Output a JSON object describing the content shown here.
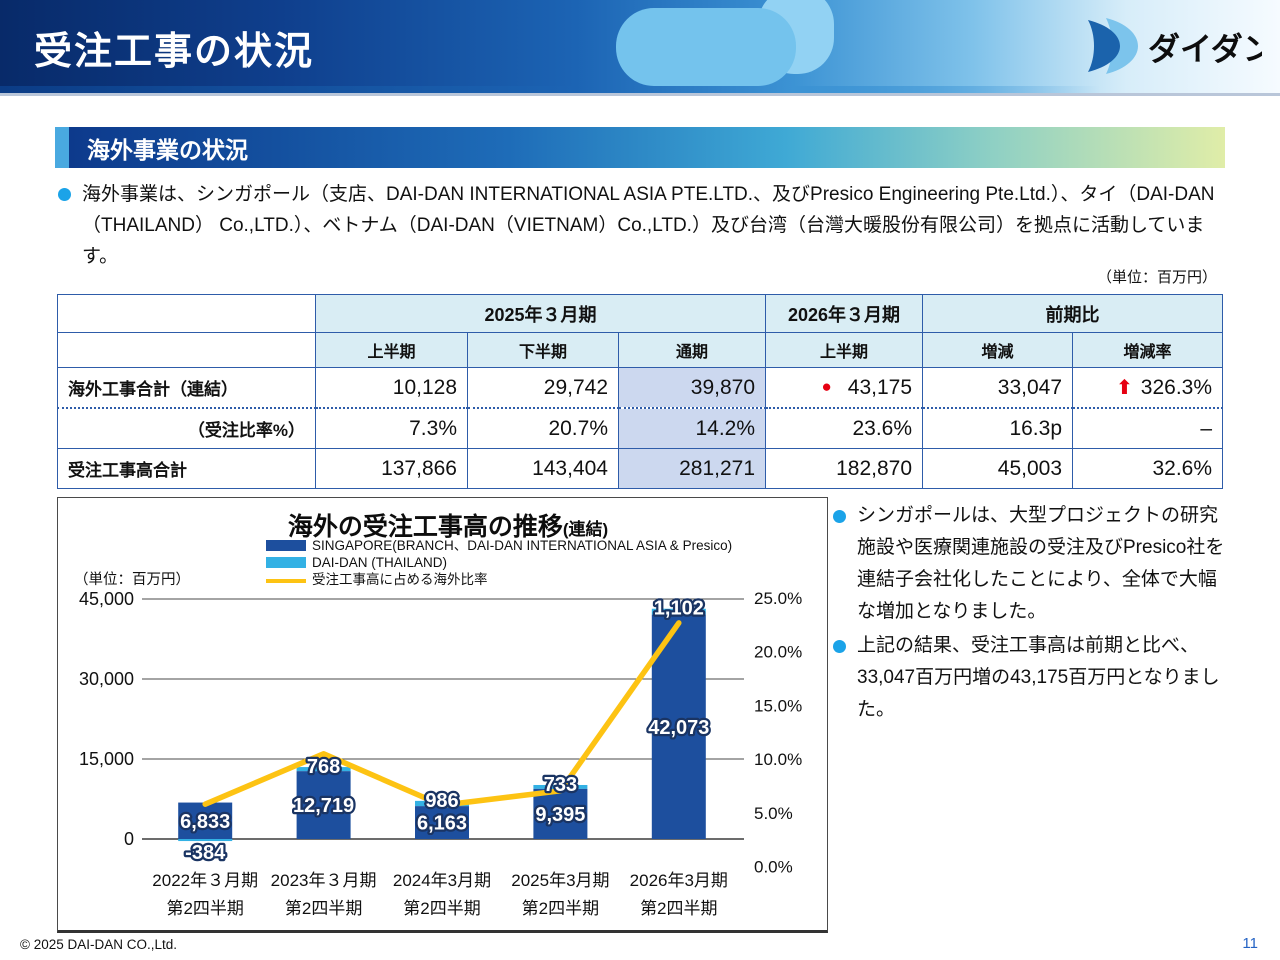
{
  "slide": {
    "title": "受注工事の状況",
    "logo_text": "ダイダン",
    "copyright": "© 2025 DAI-DAN CO.,Ltd.",
    "page_number": "11"
  },
  "section": {
    "heading": "海外事業の状況",
    "intro": "海外事業は、シンガポール（支店、DAI-DAN INTERNATIONAL ASIA PTE.LTD.、及びPresico Engineering Pte.Ltd.）、タイ（DAI-DAN（THAILAND） Co.,LTD.）、ベトナム（DAI-DAN（VIETNAM）Co.,LTD.）及び台湾（台灣大暖股份有限公司）を拠点に活動しています。",
    "unit_note": "（単位：百万円）"
  },
  "table": {
    "groups": [
      {
        "label": "2025年３月期"
      },
      {
        "label": "2026年３月期"
      },
      {
        "label": "前期比"
      }
    ],
    "subheads": [
      "上半期",
      "下半期",
      "通期",
      "上半期",
      "増減",
      "増減率"
    ],
    "rows": [
      {
        "label": "海外工事合計（連結）",
        "values": [
          "10,128",
          "29,742",
          "39,870",
          "43,175",
          "33,047",
          "326.3%"
        ]
      },
      {
        "label": "（受注比率%）",
        "values": [
          "7.3%",
          "20.7%",
          "14.2%",
          "23.6%",
          "16.3p",
          "–"
        ]
      },
      {
        "label": "受注工事高合計",
        "values": [
          "137,866",
          "143,404",
          "281,271",
          "182,870",
          "45,003",
          "32.6%"
        ]
      }
    ],
    "icons": {
      "highlight_circle": "●",
      "up_arrow": "⬆"
    }
  },
  "chart_data": {
    "type": "bar",
    "title": "海外の受注工事高の推移",
    "title_suffix": "(連結)",
    "unit_label": "（単位：百万円）",
    "categories": [
      [
        "2022年３月期",
        "第2四半期"
      ],
      [
        "2023年３月期",
        "第2四半期"
      ],
      [
        "2024年3月期",
        "第2四半期"
      ],
      [
        "2025年3月期",
        "第2四半期"
      ],
      [
        "2026年3月期",
        "第2四半期"
      ]
    ],
    "series": [
      {
        "name": "SINGAPORE(BRANCH、DAI-DAN INTERNATIONAL ASIA & Presico)",
        "type": "bar",
        "color": "#1d4f9e",
        "values": [
          6833,
          12719,
          6163,
          9395,
          42073
        ]
      },
      {
        "name": "DAI-DAN (THAILAND)",
        "type": "bar",
        "color": "#33b1e4",
        "values": [
          -384,
          768,
          986,
          733,
          1102
        ]
      },
      {
        "name": "受注工事高に占める海外比率",
        "type": "line",
        "color": "#fdc313",
        "values_pct": [
          6.0,
          10.9,
          5.9,
          7.3,
          23.6
        ]
      }
    ],
    "bar_labels": [
      [
        "6,833",
        "-384"
      ],
      [
        "12,719",
        "768"
      ],
      [
        "6,163",
        "986"
      ],
      [
        "9,395",
        "733"
      ],
      [
        "42,073",
        "1,102"
      ]
    ],
    "left_axis": {
      "min": 0,
      "max": 45000,
      "grid_values": [
        45000,
        30000,
        15000,
        0
      ],
      "ticks": [
        "45,000",
        "30,000",
        "15,000",
        "0"
      ]
    },
    "right_axis": {
      "min": 0,
      "max": 25,
      "tick_values": [
        25,
        20,
        15,
        10,
        5,
        0
      ],
      "ticks": [
        "25.0%",
        "20.0%",
        "15.0%",
        "10.0%",
        "5.0%",
        "0.0%"
      ]
    },
    "legend_position": "top",
    "grid": true
  },
  "notes": [
    "シンガポールは、大型プロジェクトの研究施設や医療関連施設の受注及びPresico社を連結子会社化したことにより、全体で大幅な増加となりました。",
    "上記の結果、受注工事高は前期と比べ、33,047百万円増の43,175百万円となりました。"
  ],
  "colors": {
    "accent_red": "#e60012",
    "bullet_blue": "#1ba3e8",
    "table_border_blue": "#2e5ca9",
    "highlight_navy": "#17418f",
    "bar_dark_blue": "#1d4f9e",
    "bar_light_blue": "#33b1e4",
    "ratio_line_yellow": "#fdc313"
  }
}
